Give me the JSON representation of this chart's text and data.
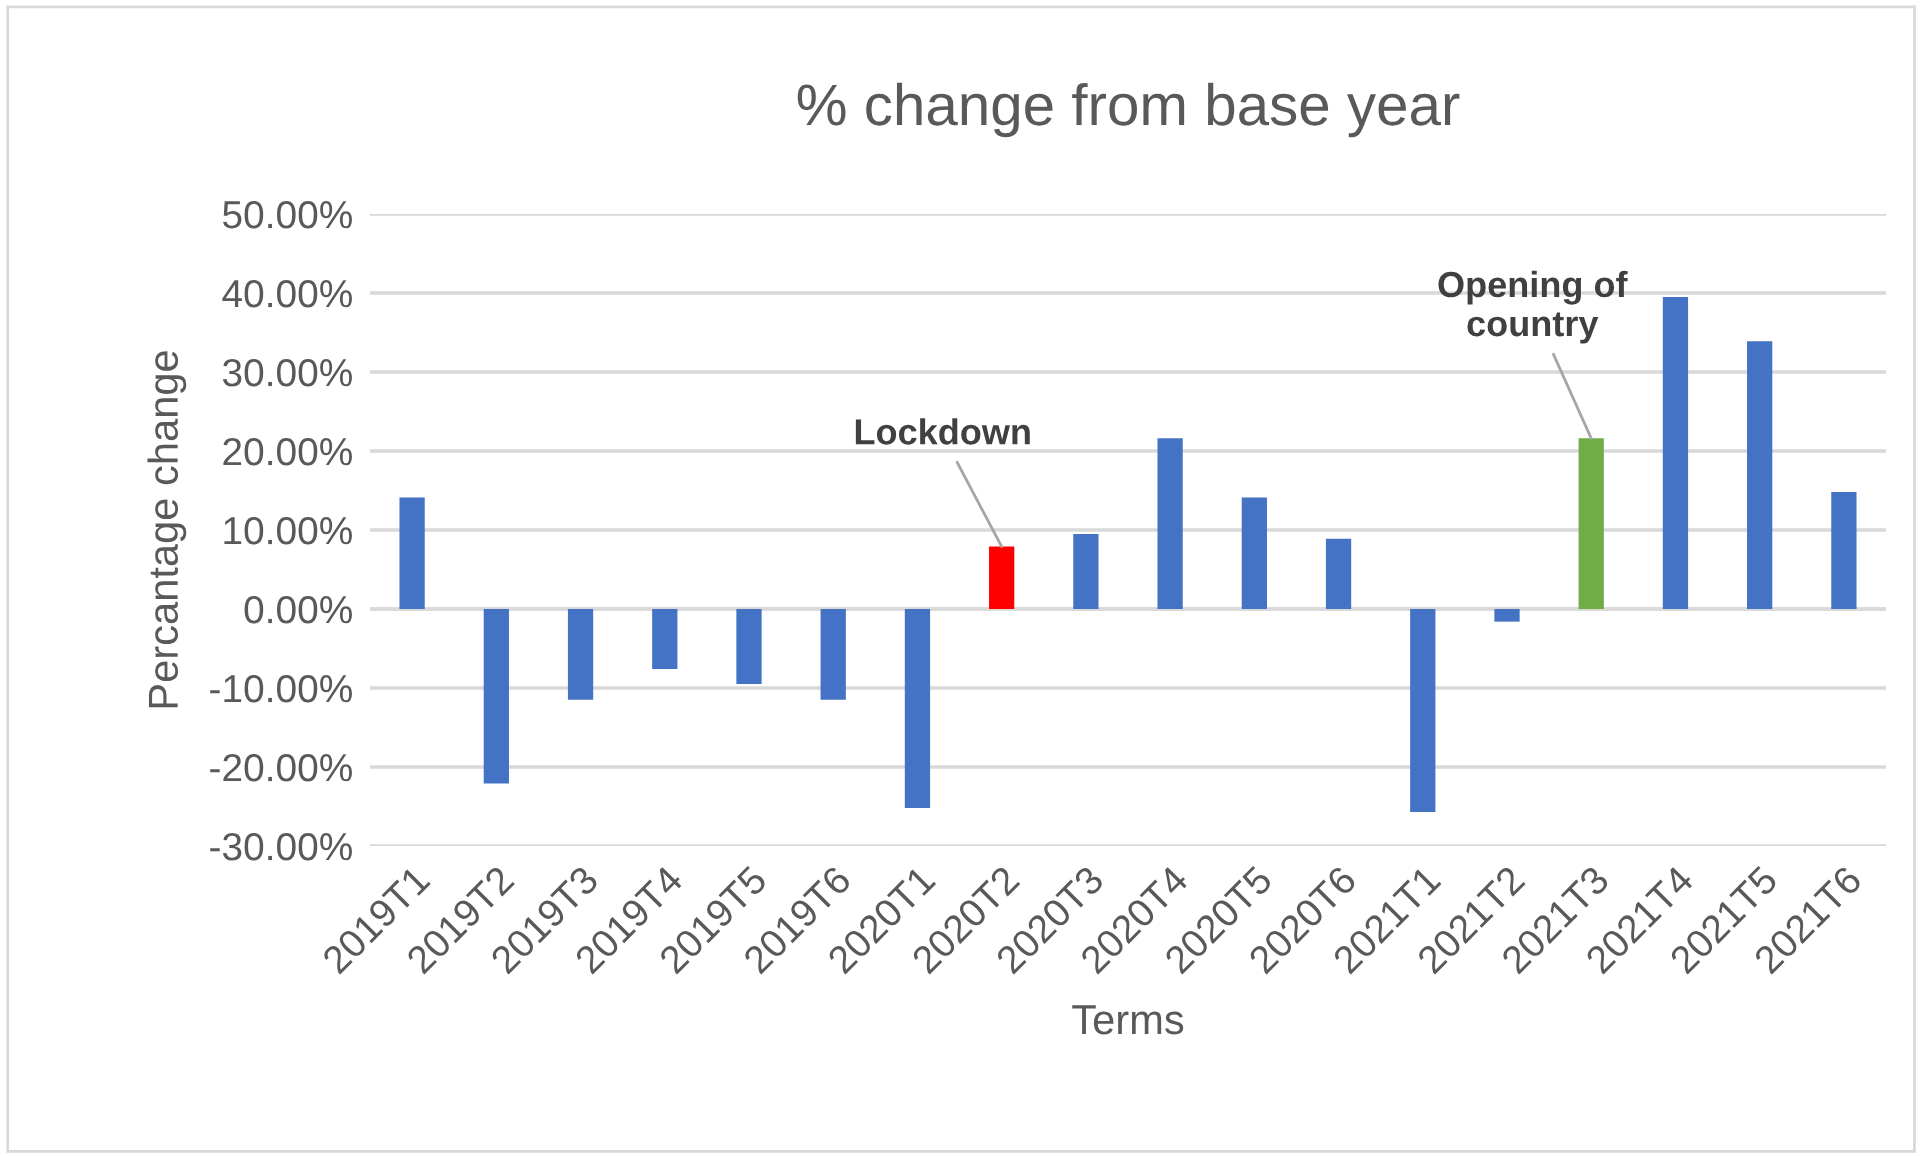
{
  "chart_data": {
    "type": "bar",
    "title": "% change from base year",
    "xlabel": "Terms",
    "ylabel": "Percantage change",
    "categories": [
      "2019T1",
      "2019T2",
      "2019T3",
      "2019T4",
      "2019T5",
      "2019T6",
      "2020T1",
      "2020T2",
      "2020T3",
      "2020T4",
      "2020T5",
      "2020T6",
      "2021T1",
      "2021T2",
      "2021T3",
      "2021T4",
      "2021T5",
      "2021T6"
    ],
    "values": [
      14.1,
      -22.1,
      -11.5,
      -7.6,
      -9.5,
      -11.5,
      -25.2,
      7.9,
      9.5,
      21.6,
      14.1,
      8.9,
      -25.7,
      -1.6,
      21.6,
      39.5,
      33.9,
      14.8
    ],
    "colors": [
      "#4472c4",
      "#4472c4",
      "#4472c4",
      "#4472c4",
      "#4472c4",
      "#4472c4",
      "#4472c4",
      "#ff0000",
      "#4472c4",
      "#4472c4",
      "#4472c4",
      "#4472c4",
      "#4472c4",
      "#4472c4",
      "#70ad47",
      "#4472c4",
      "#4472c4",
      "#4472c4"
    ],
    "ylim": [
      -30,
      50
    ],
    "yticks": [
      {
        "value": -30,
        "label": "-30.00%"
      },
      {
        "value": -20,
        "label": "-20.00%"
      },
      {
        "value": -10,
        "label": "-10.00%"
      },
      {
        "value": 0,
        "label": "0.00%"
      },
      {
        "value": 10,
        "label": "10.00%"
      },
      {
        "value": 20,
        "label": "20.00%"
      },
      {
        "value": 30,
        "label": "30.00%"
      },
      {
        "value": 40,
        "label": "40.00%"
      },
      {
        "value": 50,
        "label": "50.00%"
      }
    ],
    "grid": "y",
    "annotations": [
      {
        "text": "Lockdown",
        "x": "2020T2",
        "y": 7.9
      },
      {
        "text": "Opening of\ncountry",
        "x": "2021T3",
        "y": 21.6
      }
    ]
  }
}
